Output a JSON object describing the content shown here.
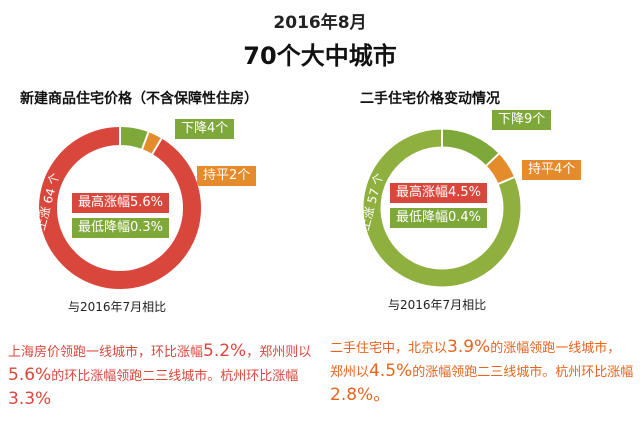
{
  "header": {
    "date": "2016年8月",
    "title": "70个大中城市"
  },
  "chart_data": [
    {
      "type": "pie",
      "title": "新建商品住宅价格（不含保障性住房）",
      "categories": [
        "上涨",
        "下降",
        "持平"
      ],
      "values": [
        64,
        4,
        2
      ],
      "colors": [
        "#d9473c",
        "#7fa83a",
        "#e48b2c"
      ],
      "ring_label": "上涨 64 个",
      "callouts": [
        {
          "label": "下降4个",
          "color": "#7fa83a"
        },
        {
          "label": "持平2个",
          "color": "#e48b2c"
        }
      ],
      "stats": {
        "max": "最高涨幅5.6%",
        "min": "最低降幅0.3%"
      },
      "compare": "与2016年7月相比"
    },
    {
      "type": "pie",
      "title": "二手住宅价格变动情况",
      "categories": [
        "上涨",
        "下降",
        "持平"
      ],
      "values": [
        57,
        9,
        4
      ],
      "colors": [
        "#8fb03e",
        "#7fa83a",
        "#e48b2c"
      ],
      "ring_label": "上涨 57 个",
      "callouts": [
        {
          "label": "下降9个",
          "color": "#7fa83a"
        },
        {
          "label": "持平4个",
          "color": "#e48b2c"
        }
      ],
      "stats": {
        "max": "最高涨幅4.5%",
        "min": "最低降幅0.4%"
      },
      "compare": "与2016年7月相比"
    }
  ],
  "notes": {
    "left": {
      "line1_a": "上海房价领跑一线城市，环比涨幅",
      "line1_b": "5.2%",
      "line1_c": "，郑州则以",
      "line2_a": "5.6%",
      "line2_b": "的环比涨幅领跑二三线城市。杭州环比涨幅",
      "line2_c": "3.3%"
    },
    "right": {
      "line1_a": "二手住宅中，北京以",
      "line1_b": "3.9%",
      "line1_c": "的涨幅领跑一线城市，",
      "line2_a": "郑州以",
      "line2_b": "4.5%",
      "line2_c": "的涨幅领跑二三线城市。杭州环比涨幅",
      "line3": "2.8%。"
    }
  }
}
